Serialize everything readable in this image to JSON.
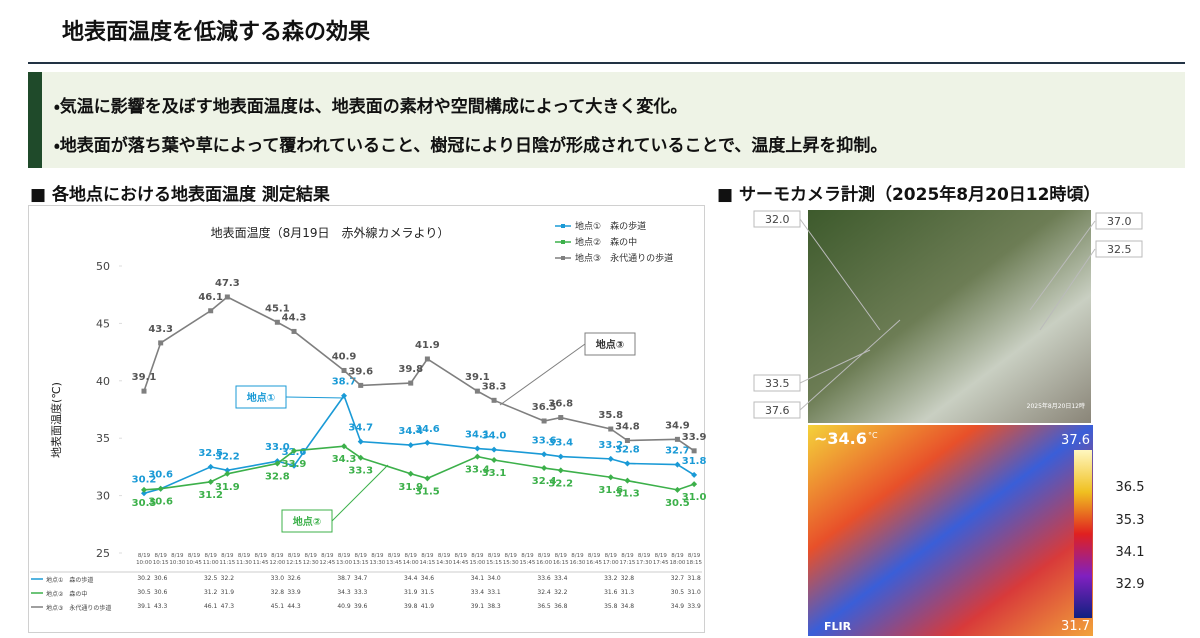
{
  "header": {
    "title": "地表面温度を低減する森の効果"
  },
  "bullets": [
    "・気温に影響を及ぼす地表面温度は、地表面の素材や空間構成によって大きく変化。",
    "・地表面が落ち葉や草によって覆われていること、樹冠により日陰が形成されていることで、温度上昇を抑制。"
  ],
  "sections": {
    "chart": "■ 各地点における地表面温度 測定結果",
    "camera": "■ サーモカメラ計測（2025年8月20日12時頃）"
  },
  "chart_data": {
    "type": "line",
    "title": "地表面温度（8月19日　赤外線カメラより）",
    "y_label": "地表面温度(℃)",
    "categories": [
      "8/19 10:00",
      "8/19 10:15",
      "8/19 10:30",
      "8/19 10:45",
      "8/19 11:00",
      "8/19 11:15",
      "8/19 11:30",
      "8/19 11:45",
      "8/19 12:00",
      "8/19 12:15",
      "8/19 12:30",
      "8/19 12:45",
      "8/19 13:00",
      "8/19 13:15",
      "8/19 13:30",
      "8/19 13:45",
      "8/19 14:00",
      "8/19 14:15",
      "8/19 14:30",
      "8/19 14:45",
      "8/19 15:00",
      "8/19 15:15",
      "8/19 15:30",
      "8/19 15:45",
      "8/19 16:00",
      "8/19 16:15",
      "8/19 16:30",
      "8/19 16:45",
      "8/19 17:00",
      "8/19 17:15",
      "8/19 17:30",
      "8/19 17:45",
      "8/19 18:00",
      "8/19 18:15"
    ],
    "ylim": [
      25,
      50
    ],
    "yticks": [
      25,
      30,
      35,
      40,
      45,
      50
    ],
    "legend": "top-right",
    "series": [
      {
        "name": "地点①　森の歩道",
        "callout": "地点①",
        "color": "#1a9ad6",
        "values": [
          30.2,
          30.6,
          null,
          null,
          32.5,
          32.2,
          null,
          null,
          33.0,
          32.6,
          null,
          null,
          38.7,
          34.7,
          null,
          null,
          34.4,
          34.6,
          null,
          null,
          34.1,
          34.0,
          null,
          null,
          33.6,
          33.4,
          null,
          null,
          33.2,
          32.8,
          null,
          null,
          32.7,
          31.8
        ],
        "value_labels": [
          "30.2",
          "30.6",
          null,
          null,
          "32.5",
          "32.2",
          null,
          null,
          "33.0",
          "32.6",
          null,
          null,
          "38.7",
          "34.7",
          null,
          null,
          "34.4",
          "34.6",
          null,
          null,
          "34.1",
          "34.0",
          null,
          null,
          "33.6",
          "33.4",
          null,
          null,
          "33.2",
          "32.8",
          null,
          null,
          "32.7",
          "31.8"
        ]
      },
      {
        "name": "地点②　森の中",
        "callout": "地点②",
        "color": "#3cb04a",
        "values": [
          30.5,
          30.6,
          null,
          null,
          31.2,
          31.9,
          null,
          null,
          32.8,
          33.9,
          null,
          null,
          34.3,
          33.3,
          null,
          null,
          31.9,
          31.5,
          null,
          null,
          33.4,
          33.1,
          null,
          null,
          32.4,
          32.2,
          null,
          null,
          31.6,
          31.3,
          null,
          null,
          30.5,
          31.0
        ],
        "value_labels": [
          "30.5",
          "30.6",
          null,
          null,
          "31.2",
          "31.9",
          null,
          null,
          "32.8",
          "33.9",
          null,
          null,
          "34.3",
          "33.3",
          null,
          null,
          "31.9",
          "31.5",
          null,
          null,
          "33.4",
          "33.1",
          null,
          null,
          "32.4",
          "32.2",
          null,
          null,
          "31.6",
          "31.3",
          null,
          null,
          "30.5",
          "31.0"
        ]
      },
      {
        "name": "地点③　永代通りの歩道",
        "callout": "地点③",
        "color": "#7f7f7f",
        "values": [
          39.1,
          43.3,
          null,
          null,
          46.1,
          47.3,
          null,
          null,
          45.1,
          44.3,
          null,
          null,
          40.9,
          39.6,
          null,
          null,
          39.8,
          41.9,
          null,
          null,
          39.1,
          38.3,
          null,
          null,
          36.5,
          36.8,
          null,
          null,
          35.8,
          34.8,
          null,
          null,
          34.9,
          33.9
        ],
        "value_labels": [
          "39.1",
          "43.3",
          null,
          null,
          "46.1",
          "47.3",
          null,
          null,
          "45.1",
          "44.3",
          null,
          null,
          "40.9",
          "39.6",
          null,
          null,
          "39.8",
          "41.9",
          null,
          null,
          "39.1",
          "38.3",
          null,
          null,
          "36.5",
          "36.8",
          null,
          null,
          "35.8",
          "34.8",
          null,
          null,
          "34.9",
          "33.9"
        ]
      }
    ]
  },
  "camera": {
    "left_labels": [
      "32.0",
      "33.5",
      "37.6"
    ],
    "right_labels": [
      "37.0",
      "32.5"
    ],
    "timestamp": "2025年8月20日12時",
    "spot": "~34.6",
    "unit": "°C",
    "max": "37.6",
    "min": "31.7",
    "scale": [
      "36.5",
      "35.3",
      "34.1",
      "32.9"
    ],
    "brand": "FLIR"
  }
}
